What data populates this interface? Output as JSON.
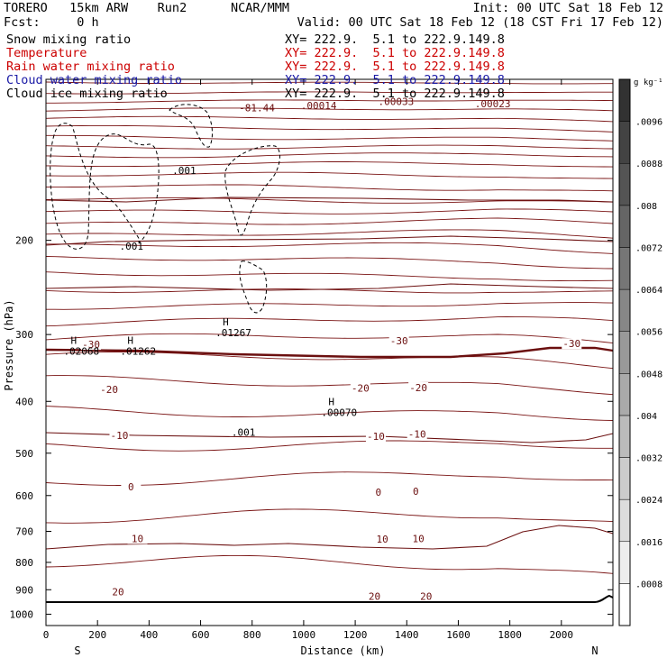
{
  "header": {
    "model_line": "TORERO   15km ARW    Run2      NCAR/MMM",
    "init_line": "Init: 00 UTC Sat 18 Feb 12",
    "fcst_line": "Fcst:     0 h",
    "valid_line": "Valid: 00 UTC Sat 18 Feb 12 (18 CST Fri 17 Feb 12)"
  },
  "legend": [
    {
      "label": "Snow mixing ratio",
      "xy": "XY= 222.9.  5.1 to 222.9.149.8",
      "color": "#000000"
    },
    {
      "label": "Temperature",
      "xy": "XY= 222.9.  5.1 to 222.9.149.8",
      "color": "#cc0000"
    },
    {
      "label": "Rain water mixing ratio",
      "xy": "XY= 222.9.  5.1 to 222.9.149.8",
      "color": "#cc0000"
    },
    {
      "label": "Cloud water mixing ratio",
      "xy": "XY= 222.9.  5.1 to 222.9.149.8",
      "color": "#1a1aa6"
    },
    {
      "label": "Cloud ice mixing ratio",
      "xy": "XY= 222.9.  5.1 to 222.9.149.8",
      "color": "#000000"
    }
  ],
  "chart_data": {
    "type": "contour",
    "xlabel": "Distance (km)",
    "ylabel": "Pressure (hPa)",
    "xlim": [
      0,
      2200
    ],
    "ylim": [
      1050,
      100
    ],
    "x_ticks": [
      "0",
      "200",
      "400",
      "600",
      "800",
      "1000",
      "1200",
      "1400",
      "1600",
      "1800",
      "2000"
    ],
    "y_ticks": [
      "200",
      "300",
      "400",
      "500",
      "600",
      "700",
      "800",
      "900",
      "1000"
    ],
    "x_ends": {
      "left": "S",
      "right": "N"
    },
    "colorbar": {
      "unit": "g kg⁻¹",
      "ticks": [
        ".0008",
        ".0016",
        ".0024",
        ".0032",
        ".004",
        ".0048",
        ".0056",
        ".0064",
        ".0072",
        ".008",
        ".0088",
        ".0096"
      ],
      "range": [
        0,
        0.0104
      ]
    },
    "temperature_labels": [
      {
        "text": "-30",
        "x": 175,
        "p": 313
      },
      {
        "text": "-30",
        "x": 1370,
        "p": 308
      },
      {
        "text": "-30",
        "x": 2040,
        "p": 312
      },
      {
        "text": "-20",
        "x": 245,
        "p": 380
      },
      {
        "text": "-20",
        "x": 1220,
        "p": 378
      },
      {
        "text": "-20",
        "x": 1445,
        "p": 377
      },
      {
        "text": "-10",
        "x": 285,
        "p": 463
      },
      {
        "text": "-10",
        "x": 1280,
        "p": 465
      },
      {
        "text": "-10",
        "x": 1440,
        "p": 460
      },
      {
        "text": "0",
        "x": 330,
        "p": 578
      },
      {
        "text": "0",
        "x": 1290,
        "p": 591
      },
      {
        "text": "0",
        "x": 1435,
        "p": 589
      },
      {
        "text": "10",
        "x": 355,
        "p": 722
      },
      {
        "text": "10",
        "x": 1305,
        "p": 723
      },
      {
        "text": "10",
        "x": 1445,
        "p": 722
      },
      {
        "text": "20",
        "x": 280,
        "p": 908
      },
      {
        "text": "20",
        "x": 1275,
        "p": 926
      },
      {
        "text": "20",
        "x": 1475,
        "p": 926
      }
    ],
    "maxima": [
      {
        "marker": "H",
        "value": ".02068",
        "x": 110,
        "p": 317
      },
      {
        "marker": "H",
        "value": ".01262",
        "x": 330,
        "p": 317
      },
      {
        "marker": "H",
        "value": ".01267",
        "x": 700,
        "p": 293
      },
      {
        "marker": "H",
        "value": ".00070",
        "x": 1110,
        "p": 413
      }
    ],
    "contour_labels": [
      {
        "text": ".001",
        "x": 525,
        "p": 148
      },
      {
        "text": ".001",
        "x": 320,
        "p": 205
      },
      {
        "text": ".001",
        "x": 755,
        "p": 457
      }
    ],
    "top_labels": [
      {
        "text": "-81.44",
        "x": 805,
        "p": 113
      },
      {
        "text": ".00014",
        "x": 1045,
        "p": 112
      },
      {
        "text": ".00033",
        "x": 1345,
        "p": 110
      },
      {
        "text": ".00023",
        "x": 1720,
        "p": 111
      }
    ]
  }
}
